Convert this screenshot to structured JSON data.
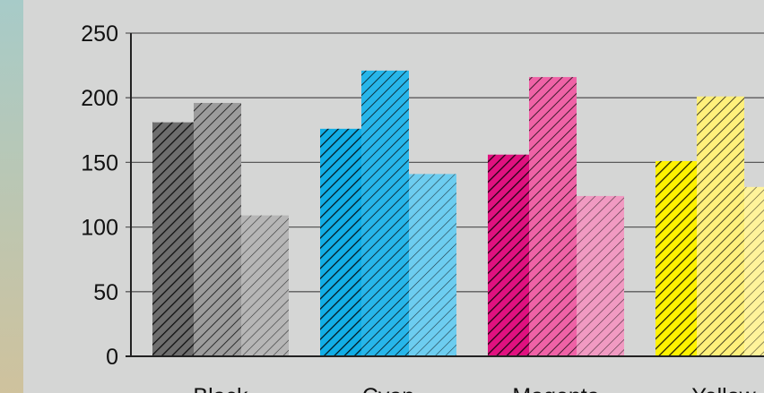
{
  "chart_data": {
    "type": "bar",
    "title": "",
    "xlabel": "",
    "ylabel": "",
    "categories": [
      "Black",
      "Cyan",
      "Magenta",
      "Yellow"
    ],
    "series": [
      {
        "values": [
          181,
          176,
          156,
          151
        ]
      },
      {
        "values": [
          196,
          221,
          216,
          201
        ]
      },
      {
        "values": [
          109,
          141,
          124,
          131
        ]
      }
    ],
    "ylim": [
      0,
      250
    ],
    "yticks": [
      "0",
      "50",
      "100",
      "150",
      "200",
      "250"
    ],
    "grid": true,
    "legend": "none",
    "colors": {
      "Black": [
        "#6e6e6e",
        "#9c9c9c",
        "#b6b6b6"
      ],
      "Cyan": [
        "#12aee6",
        "#27b6ea",
        "#6dcdf0"
      ],
      "Magenta": [
        "#e0117f",
        "#ef62a6",
        "#f19ac2"
      ],
      "Yellow": [
        "#fff200",
        "#fff07b",
        "#fff39a"
      ],
      "background": "#d5d6d5",
      "grid": "#5a5a5a"
    }
  }
}
